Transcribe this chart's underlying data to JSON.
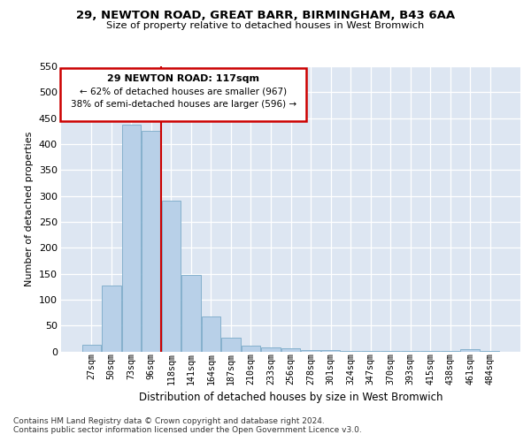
{
  "title1": "29, NEWTON ROAD, GREAT BARR, BIRMINGHAM, B43 6AA",
  "title2": "Size of property relative to detached houses in West Bromwich",
  "xlabel": "Distribution of detached houses by size in West Bromwich",
  "ylabel": "Number of detached properties",
  "categories": [
    "27sqm",
    "50sqm",
    "73sqm",
    "96sqm",
    "118sqm",
    "141sqm",
    "164sqm",
    "187sqm",
    "210sqm",
    "233sqm",
    "256sqm",
    "278sqm",
    "301sqm",
    "324sqm",
    "347sqm",
    "370sqm",
    "393sqm",
    "415sqm",
    "438sqm",
    "461sqm",
    "484sqm"
  ],
  "values": [
    12,
    127,
    437,
    425,
    290,
    147,
    68,
    27,
    11,
    8,
    6,
    2,
    2,
    1,
    1,
    1,
    1,
    1,
    1,
    5,
    1
  ],
  "bar_color": "#b8d0e8",
  "bar_edge_color": "#7aaac8",
  "vline_color": "#cc0000",
  "annotation_title": "29 NEWTON ROAD: 117sqm",
  "annotation_line1": "← 62% of detached houses are smaller (967)",
  "annotation_line2": "38% of semi-detached houses are larger (596) →",
  "annotation_box_edgecolor": "#cc0000",
  "footnote1": "Contains HM Land Registry data © Crown copyright and database right 2024.",
  "footnote2": "Contains public sector information licensed under the Open Government Licence v3.0.",
  "ylim": [
    0,
    550
  ],
  "yticks": [
    0,
    50,
    100,
    150,
    200,
    250,
    300,
    350,
    400,
    450,
    500,
    550
  ],
  "bg_color": "#dde6f2"
}
